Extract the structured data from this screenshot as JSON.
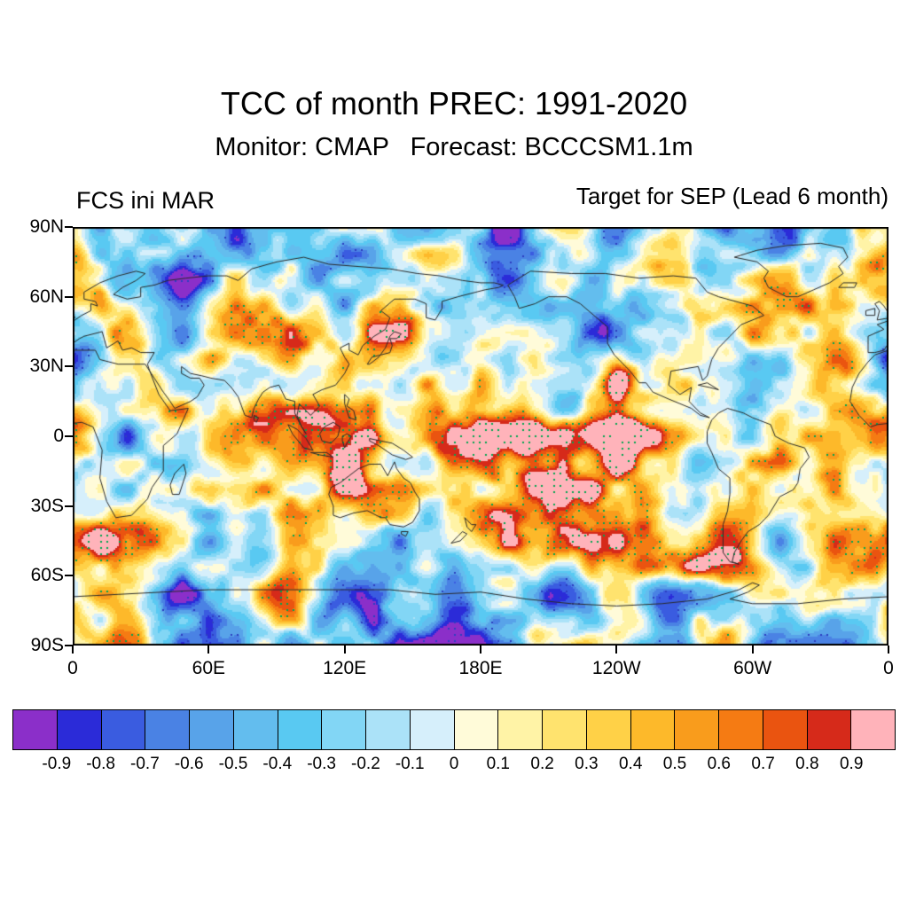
{
  "header": {
    "title": "TCC of month PREC: 1991-2020",
    "subtitle": "Monitor: CMAP   Forecast: BCCCSM1.1m",
    "left_label": "FCS ini MAR",
    "right_label": "Target for SEP (Lead 6 month)"
  },
  "chart_data": {
    "type": "heatmap",
    "title": "TCC of month PREC: 1991-2020",
    "variable": "Temporal correlation coefficient (TCC) of monthly precipitation",
    "period": "1991-2020",
    "monitor_dataset": "CMAP",
    "forecast_model": "BCCCSM1.1m",
    "forecast_init_month": "MAR",
    "target_month": "SEP",
    "lead_months": 6,
    "projection": "global equirectangular, longitude 0E eastward to 0 (0-360)",
    "x_axis": {
      "tick_labels": [
        "0",
        "60E",
        "120E",
        "180E",
        "120W",
        "60W",
        "0"
      ],
      "range_deg": [
        0,
        360
      ]
    },
    "y_axis": {
      "tick_labels": [
        "90N",
        "60N",
        "30N",
        "0",
        "30S",
        "60S",
        "90S"
      ],
      "range_deg": [
        90,
        -90
      ]
    },
    "colorbar": {
      "orientation": "horizontal",
      "boundary_labels": [
        "-0.9",
        "-0.8",
        "-0.7",
        "-0.6",
        "-0.5",
        "-0.4",
        "-0.3",
        "-0.2",
        "-0.1",
        "0",
        "0.1",
        "0.2",
        "0.3",
        "0.4",
        "0.5",
        "0.6",
        "0.7",
        "0.8",
        "0.9"
      ],
      "colors": [
        "#8b2fc9",
        "#2b2bd8",
        "#3a5ce0",
        "#4a82e4",
        "#58a3e9",
        "#63bdee",
        "#59c9f2",
        "#82d6f5",
        "#abe2f8",
        "#d6effb",
        "#fffbd9",
        "#fff3a6",
        "#ffe36e",
        "#ffd147",
        "#fdb92a",
        "#f99c1c",
        "#f57b13",
        "#ea5410",
        "#d62a1a",
        "#ffb3ba"
      ]
    },
    "significance_dots": {
      "positive_color": "#00a651",
      "negative_color": "#2d3fc0",
      "meaning": "stippled grid points where |TCC| is locally high (significant skill)"
    },
    "coastline_color": "#2a2a2a",
    "notable_features": [
      "Strong positive TCC band (0.7-0.9, red) along the equatorial central and eastern Pacific",
      "Positive TCC patches (0.5-0.8) over the Maritime Continent and northern/central Australia",
      "Orange/red streak near 55S-60S in the southeastern Pacific",
      "Weak negative TCC (light blue, -0.3 to 0) dominating high northern latitudes and polar oceans",
      "Elsewhere mixed small-scale patches mostly between -0.5 and +0.6"
    ]
  }
}
